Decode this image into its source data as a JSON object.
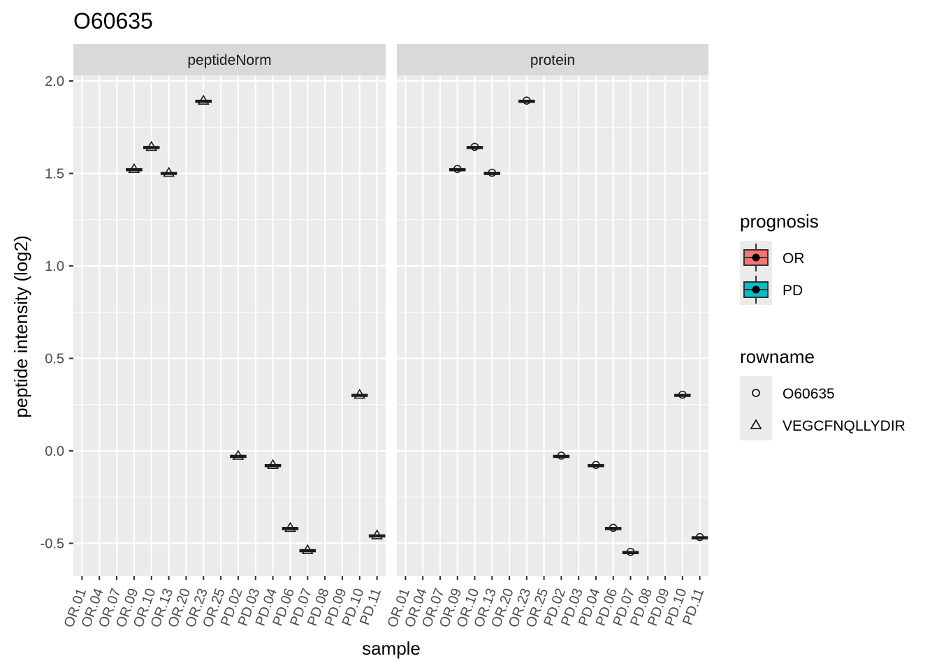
{
  "chart_data": {
    "type": "boxplot",
    "title": "O60635",
    "xlabel": "sample",
    "ylabel": "peptide intensity (log2)",
    "ylim": [
      -0.67,
      2.05
    ],
    "yticks": [
      -0.5,
      0.0,
      0.5,
      1.0,
      1.5,
      2.0
    ],
    "ytick_labels": [
      "-0.5",
      "0.0",
      "0.5",
      "1.0",
      "1.5",
      "2.0"
    ],
    "categories": [
      "OR.01",
      "OR.04",
      "OR.07",
      "OR.09",
      "OR.10",
      "OR.13",
      "OR.20",
      "OR.23",
      "OR.25",
      "PD.02",
      "PD.03",
      "PD.04",
      "PD.06",
      "PD.07",
      "PD.08",
      "PD.09",
      "PD.10",
      "PD.11"
    ],
    "panels": [
      {
        "name": "peptideNorm",
        "points": [
          {
            "sample": "OR.09",
            "value": 1.52,
            "rowname": "VEGCFNQLLYDIR",
            "prognosis": "OR"
          },
          {
            "sample": "OR.10",
            "value": 1.64,
            "rowname": "VEGCFNQLLYDIR",
            "prognosis": "OR"
          },
          {
            "sample": "OR.13",
            "value": 1.5,
            "rowname": "VEGCFNQLLYDIR",
            "prognosis": "OR"
          },
          {
            "sample": "OR.23",
            "value": 1.89,
            "rowname": "VEGCFNQLLYDIR",
            "prognosis": "OR"
          },
          {
            "sample": "PD.02",
            "value": -0.03,
            "rowname": "VEGCFNQLLYDIR",
            "prognosis": "PD"
          },
          {
            "sample": "PD.04",
            "value": -0.08,
            "rowname": "VEGCFNQLLYDIR",
            "prognosis": "PD"
          },
          {
            "sample": "PD.06",
            "value": -0.42,
            "rowname": "VEGCFNQLLYDIR",
            "prognosis": "PD"
          },
          {
            "sample": "PD.07",
            "value": -0.54,
            "rowname": "VEGCFNQLLYDIR",
            "prognosis": "PD"
          },
          {
            "sample": "PD.10",
            "value": 0.3,
            "rowname": "VEGCFNQLLYDIR",
            "prognosis": "PD"
          },
          {
            "sample": "PD.11",
            "value": -0.46,
            "rowname": "VEGCFNQLLYDIR",
            "prognosis": "PD"
          }
        ]
      },
      {
        "name": "protein",
        "points": [
          {
            "sample": "OR.09",
            "value": 1.52,
            "rowname": "O60635",
            "prognosis": "OR"
          },
          {
            "sample": "OR.10",
            "value": 1.64,
            "rowname": "O60635",
            "prognosis": "OR"
          },
          {
            "sample": "OR.13",
            "value": 1.5,
            "rowname": "O60635",
            "prognosis": "OR"
          },
          {
            "sample": "OR.23",
            "value": 1.89,
            "rowname": "O60635",
            "prognosis": "OR"
          },
          {
            "sample": "PD.02",
            "value": -0.03,
            "rowname": "O60635",
            "prognosis": "PD"
          },
          {
            "sample": "PD.04",
            "value": -0.08,
            "rowname": "O60635",
            "prognosis": "PD"
          },
          {
            "sample": "PD.06",
            "value": -0.42,
            "rowname": "O60635",
            "prognosis": "PD"
          },
          {
            "sample": "PD.07",
            "value": -0.55,
            "rowname": "O60635",
            "prognosis": "PD"
          },
          {
            "sample": "PD.10",
            "value": 0.3,
            "rowname": "O60635",
            "prognosis": "PD"
          },
          {
            "sample": "PD.11",
            "value": -0.47,
            "rowname": "O60635",
            "prognosis": "PD"
          }
        ]
      }
    ],
    "legend": {
      "placement": "right",
      "fill": {
        "title": "prognosis",
        "entries": [
          {
            "label": "OR",
            "color": "#F8766D"
          },
          {
            "label": "PD",
            "color": "#00BFC4"
          }
        ]
      },
      "shape": {
        "title": "rowname",
        "entries": [
          {
            "label": "O60635",
            "shape": "circle"
          },
          {
            "label": "VEGCFNQLLYDIR",
            "shape": "triangle"
          }
        ]
      }
    },
    "grid": true,
    "colors": {
      "panel_bg": "#EBEBEB",
      "strip_bg": "#D9D9D9",
      "grid": "#FFFFFF",
      "mark": "#1A1A1A"
    }
  }
}
